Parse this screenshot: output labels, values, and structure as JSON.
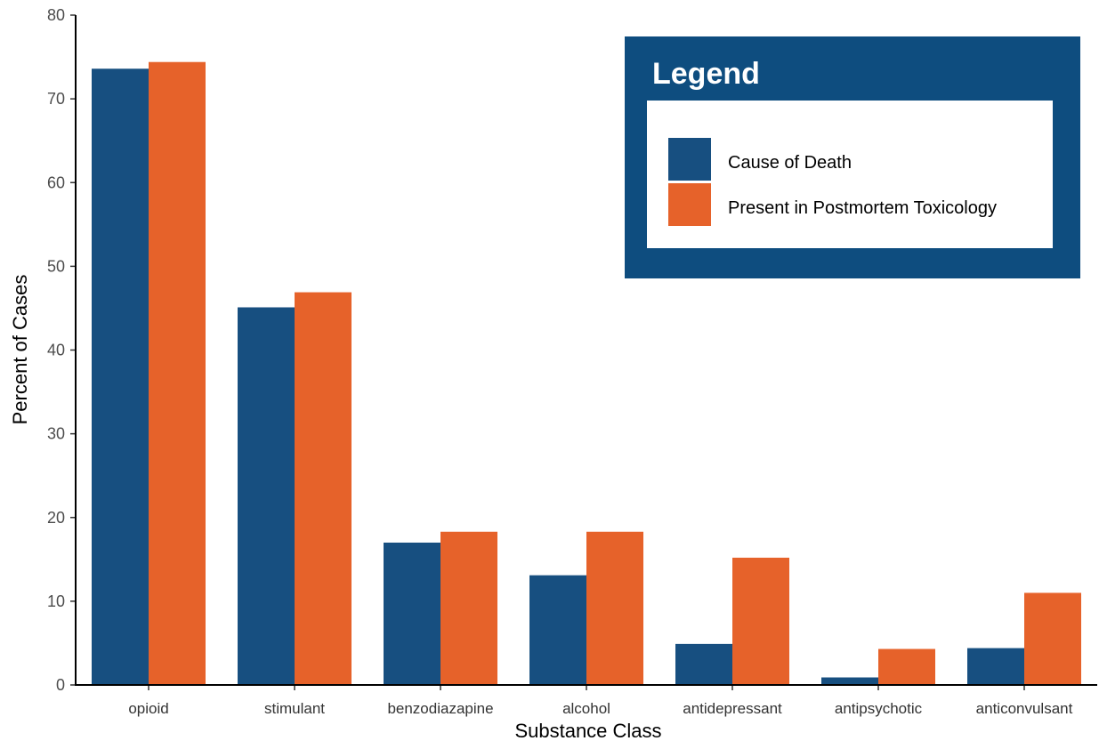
{
  "chart_data": {
    "type": "bar",
    "xlabel": "Substance Class",
    "ylabel": "Percent of Cases",
    "ylim": [
      0,
      80
    ],
    "yticks": [
      0,
      10,
      20,
      30,
      40,
      50,
      60,
      70,
      80
    ],
    "categories": [
      "opioid",
      "stimulant",
      "benzodiazapine",
      "alcohol",
      "antidepressant",
      "antipsychotic",
      "anticonvulsant"
    ],
    "series": [
      {
        "name": "Cause of Death",
        "color": "#174f80",
        "values": [
          73.6,
          45.1,
          17.0,
          13.1,
          4.9,
          0.9,
          4.4
        ]
      },
      {
        "name": "Present in Postmortem Toxicology",
        "color": "#e6622a",
        "values": [
          74.4,
          46.9,
          18.3,
          18.3,
          15.2,
          4.3,
          11.0
        ]
      }
    ],
    "grid": false,
    "legend": {
      "title": "Legend",
      "position": "top-right",
      "frame_color": "#0e4d7f"
    }
  }
}
